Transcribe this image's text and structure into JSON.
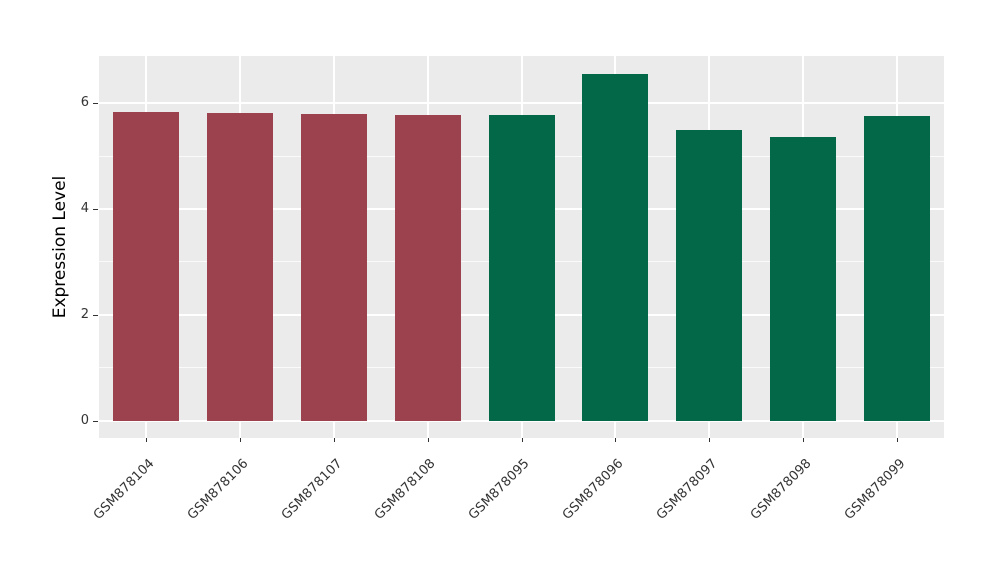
{
  "figure": {
    "background": "#ffffff",
    "panel_background": "#ebebeb",
    "grid_color": "#ffffff",
    "tick_color": "#333333",
    "text_color": "#333333"
  },
  "chart_data": {
    "type": "bar",
    "title": "",
    "xlabel": "",
    "ylabel": "Expression Level",
    "categories": [
      "GSM878104",
      "GSM878106",
      "GSM878107",
      "GSM878108",
      "GSM878095",
      "GSM878096",
      "GSM878097",
      "GSM878098",
      "GSM878099"
    ],
    "values": [
      5.84,
      5.81,
      5.79,
      5.77,
      5.78,
      6.56,
      5.5,
      5.36,
      5.75
    ],
    "bar_colors": [
      "#9b424e",
      "#9b424e",
      "#9b424e",
      "#9b424e",
      "#026847",
      "#026847",
      "#026847",
      "#026847",
      "#026847"
    ],
    "group_colors": {
      "maroon": "#9b424e",
      "green": "#026847"
    },
    "yticks": [
      0,
      2,
      4,
      6
    ],
    "ytick_labels": [
      "0",
      "2",
      "4",
      "6"
    ],
    "yticks_minor": [
      1,
      3,
      5
    ],
    "ylim": [
      -0.33,
      6.9
    ],
    "grid": {
      "horizontal": "major+minor",
      "vertical": "at-category-centers"
    },
    "legend": "none",
    "x_label_rotation_deg": 45
  }
}
